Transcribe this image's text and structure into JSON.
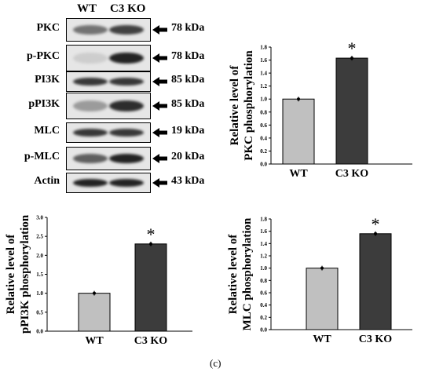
{
  "blot": {
    "lane_labels": [
      "WT",
      "C3 KO"
    ],
    "rows": [
      {
        "protein": "PKC",
        "size": "78 kDa",
        "wt_intensity": 0.55,
        "ko_intensity": 0.8
      },
      {
        "protein": "p-PKC",
        "size": "78 kDa",
        "wt_intensity": 0.1,
        "ko_intensity": 0.95
      },
      {
        "protein": "PI3K",
        "size": "85 kDa",
        "wt_intensity": 0.85,
        "ko_intensity": 0.85
      },
      {
        "protein": "pPI3K",
        "size": "85 kDa",
        "wt_intensity": 0.35,
        "ko_intensity": 0.9
      },
      {
        "protein": "MLC",
        "size": "19 kDa",
        "wt_intensity": 0.85,
        "ko_intensity": 0.85
      },
      {
        "protein": "p-MLC",
        "size": "20 kDa",
        "wt_intensity": 0.65,
        "ko_intensity": 0.95
      },
      {
        "protein": "Actin",
        "size": "43 kDa",
        "wt_intensity": 0.95,
        "ko_intensity": 0.95
      }
    ]
  },
  "chart_data": [
    {
      "type": "bar",
      "categories": [
        "WT",
        "C3 KO"
      ],
      "values": [
        1.0,
        1.63
      ],
      "ylabel": "Relative level of PKC phosphorylation",
      "ylabel_lines": [
        "Relative level of",
        "PKC phosphorylation"
      ],
      "ylim": [
        0,
        1.8
      ],
      "yticks": [
        "0.0",
        "0.2",
        "0.4",
        "0.6",
        "0.8",
        "1.0",
        "1.2",
        "1.4",
        "1.6",
        "1.8"
      ],
      "significance": "*",
      "colors": [
        "#c0c0c0",
        "#3c3c3c"
      ]
    },
    {
      "type": "bar",
      "categories": [
        "WT",
        "C3 KO"
      ],
      "values": [
        1.0,
        2.3
      ],
      "ylabel": "Relative level of pPI3K phosphorylation",
      "ylabel_lines": [
        "Relative level of",
        "pPI3K phosphorylation"
      ],
      "ylim": [
        0,
        3.0
      ],
      "yticks": [
        "0.0",
        "0.5",
        "1.0",
        "1.5",
        "2.0",
        "2.5",
        "3.0"
      ],
      "significance": "*",
      "colors": [
        "#c0c0c0",
        "#3c3c3c"
      ]
    },
    {
      "type": "bar",
      "categories": [
        "WT",
        "C3 KO"
      ],
      "values": [
        1.0,
        1.56
      ],
      "ylabel": "Relative level of MLC phosphorylation",
      "ylabel_lines": [
        "Relative level of",
        "MLC phosphorylation"
      ],
      "ylim": [
        0,
        1.8
      ],
      "yticks": [
        "0.0",
        "0.2",
        "0.4",
        "0.6",
        "0.8",
        "1.0",
        "1.2",
        "1.4",
        "1.6",
        "1.8"
      ],
      "significance": "*",
      "colors": [
        "#c0c0c0",
        "#3c3c3c"
      ]
    }
  ],
  "caption": "(c)"
}
